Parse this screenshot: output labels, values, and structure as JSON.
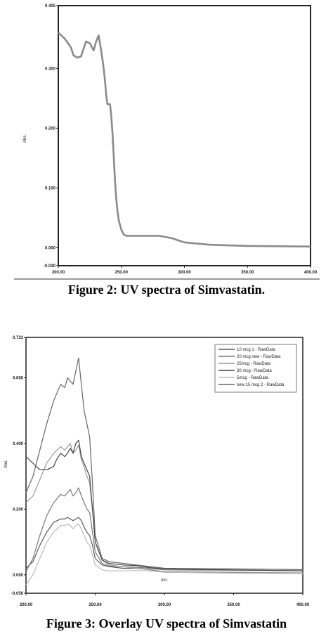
{
  "chart_data": [
    {
      "type": "line",
      "title": "",
      "ylabel": "Abs.",
      "xlabel": "",
      "xlim": [
        200,
        400
      ],
      "ylim": [
        -0.03,
        0.405
      ],
      "yticks": [
        "0.405",
        "0.300",
        "0.200",
        "0.100",
        "0.000",
        "-0.030"
      ],
      "xticks": [
        "200.00",
        "250.00",
        "300.00",
        "350.00",
        "400.00"
      ],
      "series": [
        {
          "color": "#8a8a8a",
          "x": [
            200,
            205,
            210,
            212,
            215,
            218,
            222,
            225,
            228,
            230,
            232,
            234,
            236,
            237,
            238,
            239,
            240,
            241,
            242,
            243,
            244,
            245,
            246,
            247,
            248,
            250,
            252,
            254,
            256,
            258,
            260,
            270,
            280,
            290,
            300,
            320,
            350,
            400
          ],
          "y": [
            0.36,
            0.35,
            0.335,
            0.322,
            0.318,
            0.32,
            0.345,
            0.342,
            0.33,
            0.345,
            0.355,
            0.33,
            0.3,
            0.28,
            0.255,
            0.24,
            0.24,
            0.24,
            0.22,
            0.19,
            0.15,
            0.11,
            0.08,
            0.06,
            0.045,
            0.03,
            0.022,
            0.02,
            0.02,
            0.02,
            0.02,
            0.02,
            0.02,
            0.016,
            0.009,
            0.005,
            0.003,
            0.002
          ]
        }
      ]
    },
    {
      "type": "line",
      "title": "",
      "ylabel": "Abs.",
      "xlabel": "nm.",
      "xlim": [
        200,
        400
      ],
      "ylim": [
        -0.056,
        0.723
      ],
      "yticks": [
        "0.723",
        "0.600",
        "0.400",
        "0.200",
        "0.000",
        "-0.056"
      ],
      "xticks": [
        "200.00",
        "250.00",
        "300.00",
        "350.00",
        "400.00"
      ],
      "legend_position": "top-right",
      "series": [
        {
          "name": "10 mcg 1 - RawData",
          "color": "#5a5a5a",
          "x": [
            200,
            205,
            210,
            215,
            220,
            225,
            228,
            230,
            232,
            234,
            236,
            238,
            240,
            242,
            244,
            246,
            248,
            250,
            255,
            260,
            270,
            280,
            290,
            300,
            350,
            400
          ],
          "y": [
            0.02,
            0.04,
            0.09,
            0.13,
            0.16,
            0.17,
            0.17,
            0.175,
            0.17,
            0.165,
            0.17,
            0.175,
            0.165,
            0.145,
            0.13,
            0.12,
            0.09,
            0.05,
            0.03,
            0.025,
            0.02,
            0.02,
            0.015,
            0.008,
            0.006,
            0.005
          ]
        },
        {
          "name": "20 mcg new - RawData",
          "color": "#777777",
          "x": [
            200,
            205,
            210,
            215,
            220,
            225,
            228,
            230,
            232,
            234,
            236,
            238,
            240,
            242,
            244,
            246,
            248,
            250,
            255,
            260,
            270,
            280,
            290,
            300,
            350,
            400
          ],
          "y": [
            0.01,
            0.05,
            0.12,
            0.18,
            0.22,
            0.245,
            0.24,
            0.25,
            0.26,
            0.24,
            0.25,
            0.265,
            0.24,
            0.22,
            0.2,
            0.19,
            0.13,
            0.07,
            0.035,
            0.027,
            0.025,
            0.023,
            0.02,
            0.015,
            0.014,
            0.013
          ]
        },
        {
          "name": "25mcg - RawData",
          "color": "#999999",
          "x": [
            200,
            205,
            210,
            215,
            220,
            225,
            228,
            230,
            232,
            234,
            236,
            238,
            240,
            242,
            244,
            246,
            248,
            250,
            255,
            260,
            270,
            280,
            290,
            300,
            350,
            400
          ],
          "y": [
            0.22,
            0.24,
            0.29,
            0.34,
            0.37,
            0.39,
            0.38,
            0.39,
            0.4,
            0.37,
            0.38,
            0.395,
            0.35,
            0.33,
            0.3,
            0.28,
            0.2,
            0.1,
            0.045,
            0.03,
            0.025,
            0.02,
            0.016,
            0.01,
            0.008,
            0.006
          ]
        },
        {
          "name": "30 mcg - RawData",
          "color": "#444444",
          "x": [
            200,
            205,
            210,
            215,
            220,
            222,
            225,
            228,
            230,
            232,
            234,
            236,
            238,
            240,
            242,
            244,
            246,
            248,
            250,
            255,
            260,
            270,
            280,
            290,
            300,
            350,
            400
          ],
          "y": [
            0.36,
            0.34,
            0.32,
            0.32,
            0.33,
            0.35,
            0.37,
            0.36,
            0.37,
            0.385,
            0.37,
            0.4,
            0.41,
            0.36,
            0.34,
            0.32,
            0.3,
            0.2,
            0.1,
            0.045,
            0.035,
            0.03,
            0.028,
            0.022,
            0.018,
            0.015,
            0.012
          ]
        },
        {
          "name": "5mcg - RawData",
          "color": "#bbbbbb",
          "x": [
            200,
            205,
            210,
            215,
            220,
            225,
            228,
            230,
            232,
            234,
            236,
            238,
            240,
            242,
            244,
            246,
            248,
            250,
            255,
            260,
            270,
            280,
            290,
            300,
            350,
            400
          ],
          "y": [
            -0.03,
            0.0,
            0.05,
            0.1,
            0.13,
            0.15,
            0.15,
            0.155,
            0.15,
            0.14,
            0.15,
            0.155,
            0.14,
            0.12,
            0.1,
            0.09,
            0.06,
            0.03,
            0.015,
            0.012,
            0.012,
            0.013,
            0.012,
            0.008,
            0.005,
            0.004
          ]
        },
        {
          "name": "new 15 mcg 2 - RawData",
          "color": "#666666",
          "x": [
            200,
            205,
            210,
            215,
            220,
            225,
            228,
            230,
            232,
            234,
            236,
            238,
            240,
            242,
            244,
            246,
            248,
            250,
            255,
            260,
            270,
            280,
            290,
            300,
            350,
            400
          ],
          "y": [
            0.25,
            0.3,
            0.38,
            0.46,
            0.53,
            0.58,
            0.57,
            0.6,
            0.59,
            0.58,
            0.62,
            0.66,
            0.58,
            0.5,
            0.46,
            0.42,
            0.28,
            0.12,
            0.05,
            0.04,
            0.035,
            0.03,
            0.025,
            0.02,
            0.018,
            0.016
          ]
        }
      ]
    }
  ],
  "captions": {
    "fig2": "Figure 2:  UV spectra of Simvastatin.",
    "fig3": "Figure 3:  Overlay UV spectra of Simvastatin"
  }
}
